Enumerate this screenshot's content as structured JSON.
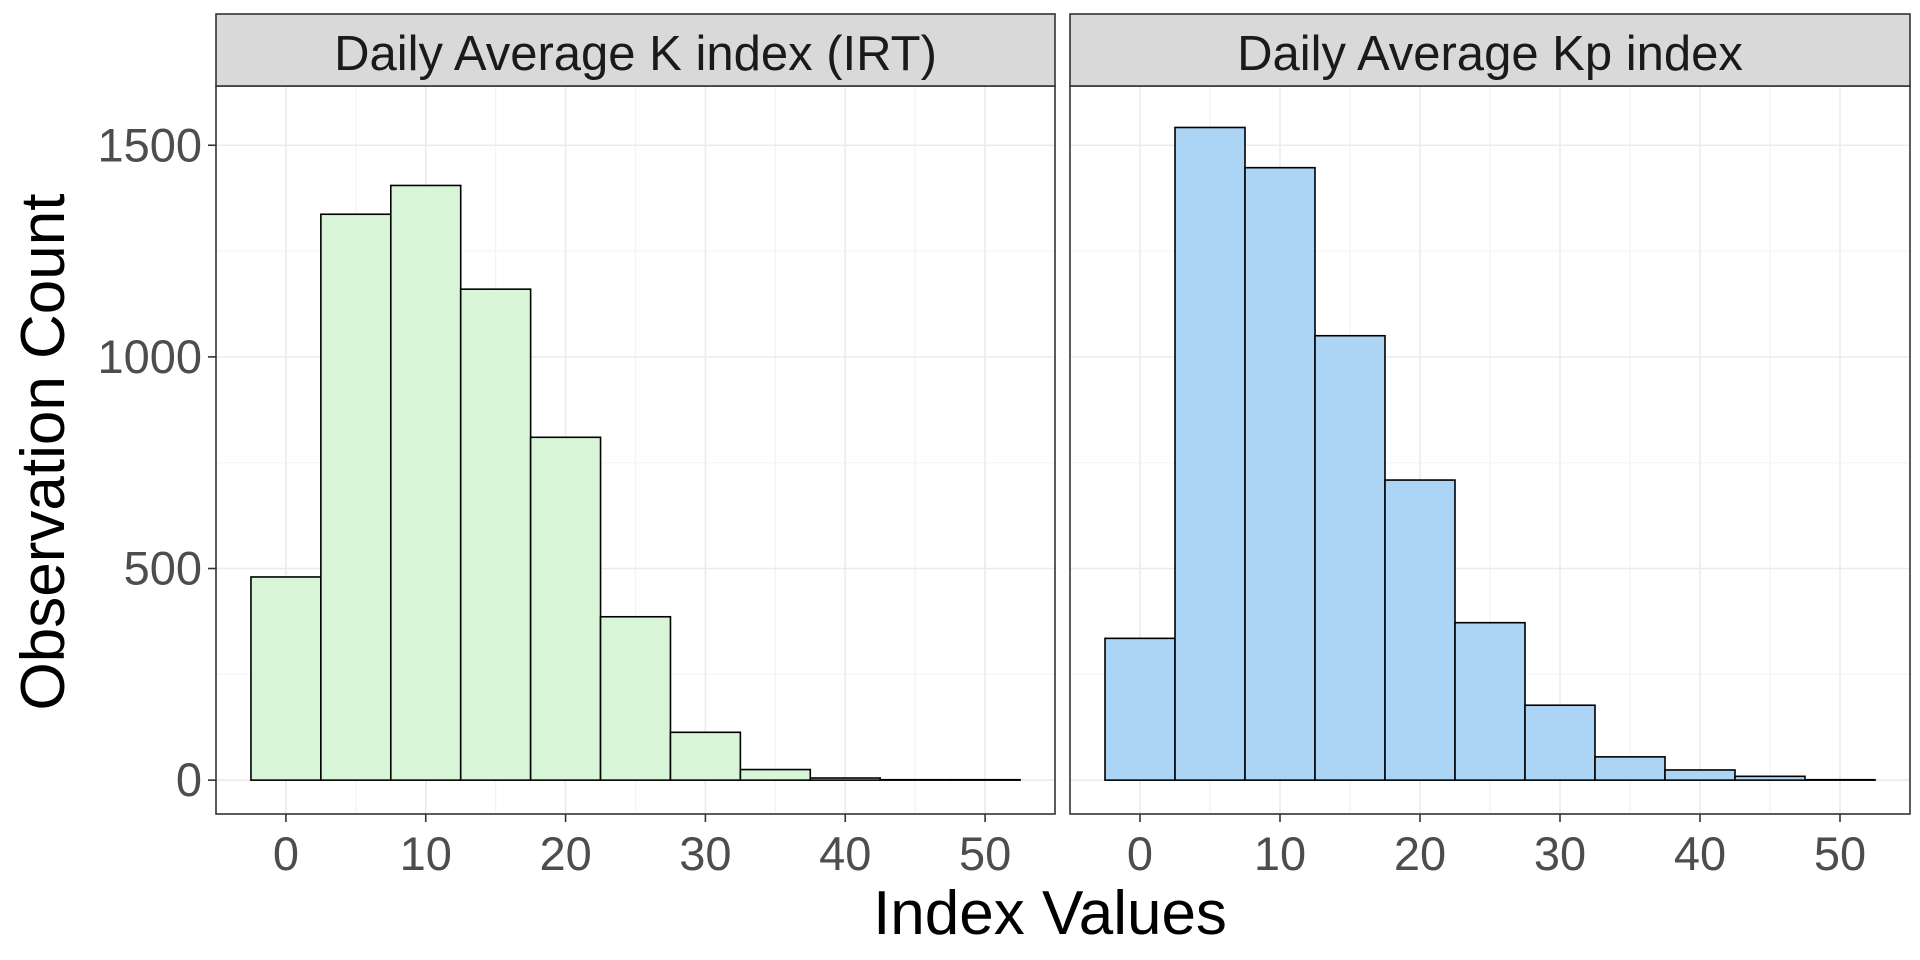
{
  "chart_data": {
    "type": "bar",
    "subtype": "histogram-facets",
    "xlabel": "Index Values",
    "ylabel": "Observation Count",
    "xlim": [
      -5,
      55
    ],
    "ylim": [
      -80,
      1640
    ],
    "x_ticks": [
      0,
      10,
      20,
      30,
      40,
      50
    ],
    "y_ticks": [
      0,
      500,
      1000,
      1500
    ],
    "bin_width": 5,
    "grid": true,
    "facets": [
      {
        "title": "Daily Average K index (IRT)",
        "color": "#d8f5d8",
        "bins": [
          {
            "x": 0,
            "count": 480
          },
          {
            "x": 5,
            "count": 1337
          },
          {
            "x": 10,
            "count": 1405
          },
          {
            "x": 15,
            "count": 1160
          },
          {
            "x": 20,
            "count": 810
          },
          {
            "x": 25,
            "count": 386
          },
          {
            "x": 30,
            "count": 113
          },
          {
            "x": 35,
            "count": 25
          },
          {
            "x": 40,
            "count": 5
          },
          {
            "x": 45,
            "count": 1
          },
          {
            "x": 50,
            "count": 1
          }
        ]
      },
      {
        "title": "Daily Average Kp index",
        "color": "#acd4f5",
        "bins": [
          {
            "x": 0,
            "count": 335
          },
          {
            "x": 5,
            "count": 1542
          },
          {
            "x": 10,
            "count": 1447
          },
          {
            "x": 15,
            "count": 1050
          },
          {
            "x": 20,
            "count": 709
          },
          {
            "x": 25,
            "count": 372
          },
          {
            "x": 30,
            "count": 177
          },
          {
            "x": 35,
            "count": 55
          },
          {
            "x": 40,
            "count": 24
          },
          {
            "x": 45,
            "count": 9
          },
          {
            "x": 50,
            "count": 1
          }
        ]
      }
    ]
  }
}
